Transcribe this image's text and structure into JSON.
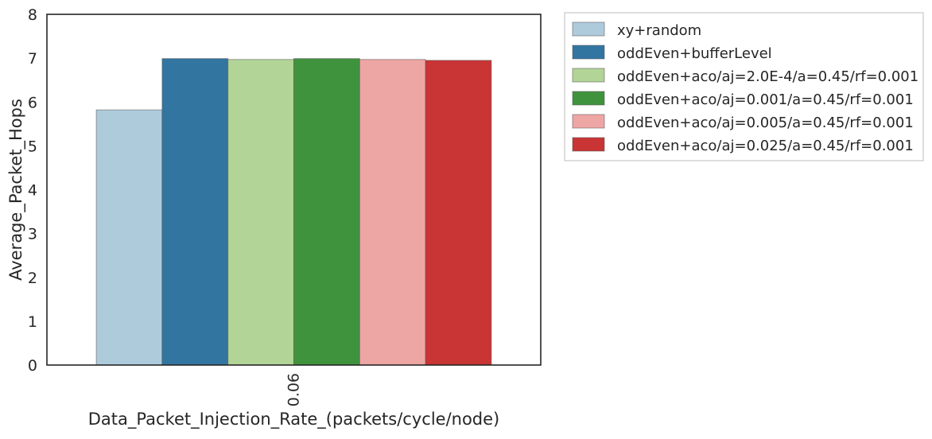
{
  "chart_data": {
    "type": "bar",
    "title": "",
    "xlabel": "Data_Packet_Injection_Rate_(packets/cycle/node)",
    "ylabel": "Average_Packet_Hops",
    "ylim": [
      0,
      8
    ],
    "yticks": [
      "0",
      "1",
      "2",
      "3",
      "4",
      "5",
      "6",
      "7",
      "8"
    ],
    "categories": [
      "0.06"
    ],
    "grid": false,
    "legend_position": "outside-top-right",
    "series": [
      {
        "name": "xy+random",
        "values": [
          5.82
        ],
        "color": "#aecbdc"
      },
      {
        "name": "oddEven+bufferLevel",
        "values": [
          6.99
        ],
        "color": "#3275a1"
      },
      {
        "name": "oddEven+aco/aj=2.0E-4/a=0.45/rf=0.001",
        "values": [
          6.97
        ],
        "color": "#b2d496"
      },
      {
        "name": "oddEven+aco/aj=0.001/a=0.45/rf=0.001",
        "values": [
          6.99
        ],
        "color": "#40933d"
      },
      {
        "name": "oddEven+aco/aj=0.005/a=0.45/rf=0.001",
        "values": [
          6.97
        ],
        "color": "#eea6a5"
      },
      {
        "name": "oddEven+aco/aj=0.025/a=0.45/rf=0.001",
        "values": [
          6.95
        ],
        "color": "#c93434"
      }
    ]
  }
}
